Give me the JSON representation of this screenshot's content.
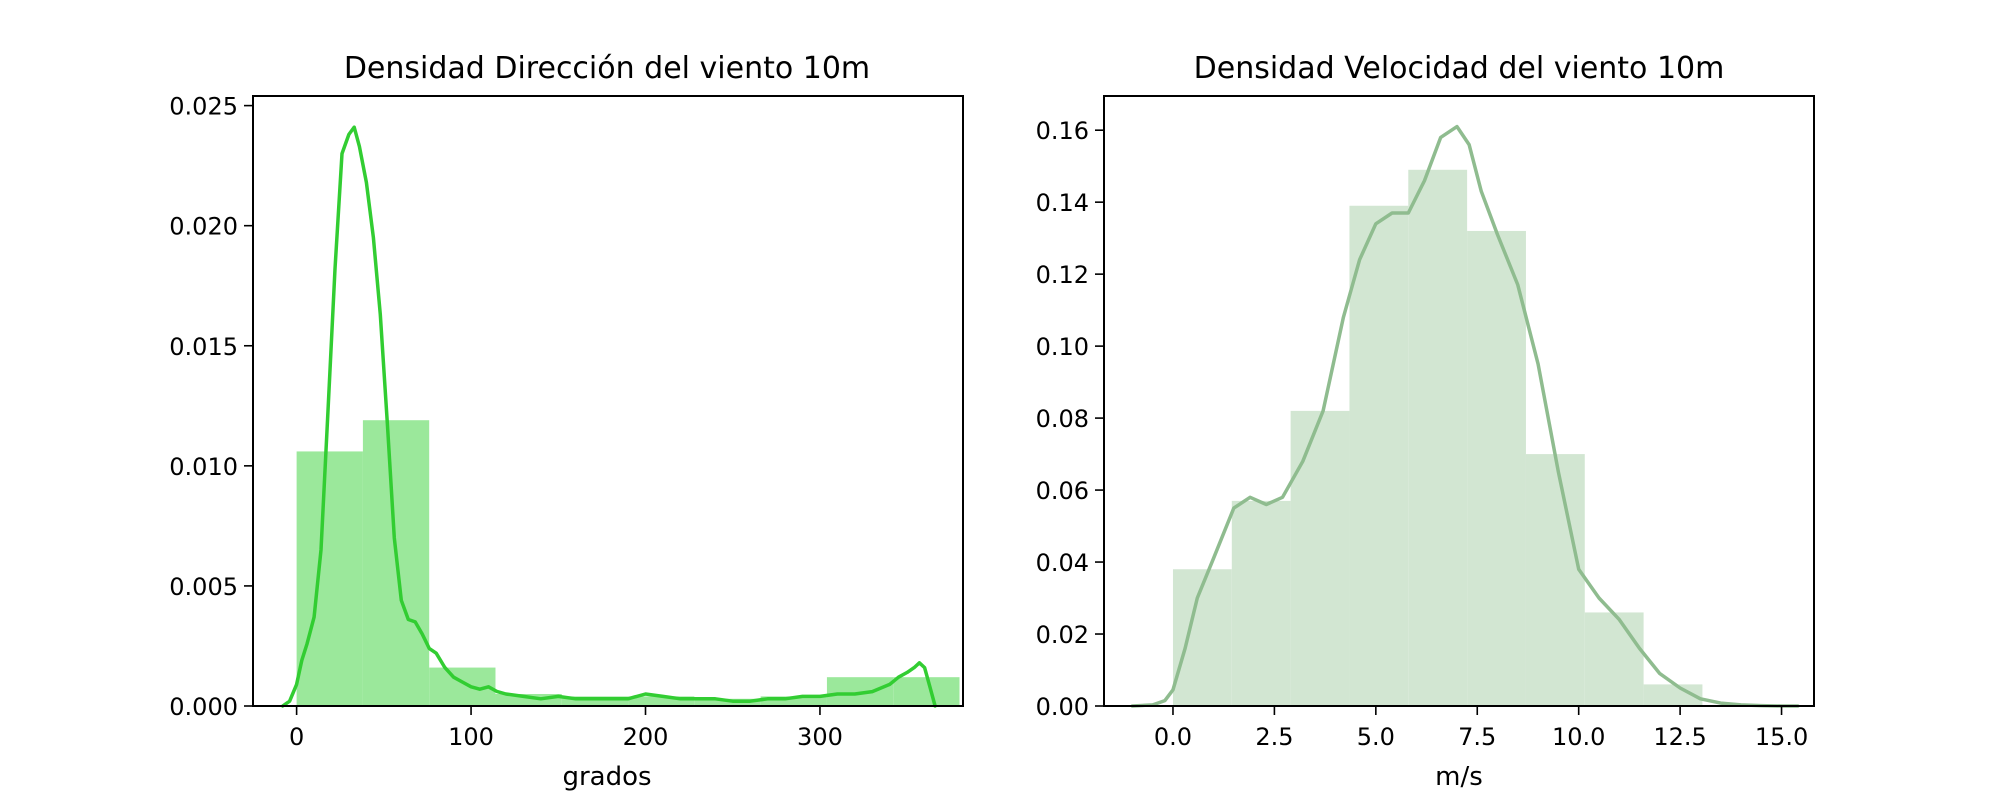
{
  "chart_data": [
    {
      "type": "histogram+kde",
      "title": "Densidad Dirección del viento 10m",
      "xlabel": "grados",
      "ylabel": "",
      "xlim": [
        -25,
        382
      ],
      "ylim": [
        0,
        0.0254
      ],
      "xticks": [
        0,
        100,
        200,
        300
      ],
      "xtick_labels": [
        "0",
        "100",
        "200",
        "300"
      ],
      "yticks": [
        0,
        0.005,
        0.01,
        0.015,
        0.02,
        0.025
      ],
      "ytick_labels": [
        "0.000",
        "0.005",
        "0.010",
        "0.015",
        "0.020",
        "0.025"
      ],
      "bar_color": "#9be89b",
      "line_color": "#32cd32",
      "bins": [
        {
          "x0": 0,
          "x1": 38,
          "value": 0.0106
        },
        {
          "x0": 38,
          "x1": 76,
          "value": 0.0119
        },
        {
          "x0": 76,
          "x1": 114,
          "value": 0.0016
        },
        {
          "x0": 114,
          "x1": 152,
          "value": 0.0005
        },
        {
          "x0": 152,
          "x1": 190,
          "value": 0.0004
        },
        {
          "x0": 190,
          "x1": 228,
          "value": 0.0004
        },
        {
          "x0": 228,
          "x1": 266,
          "value": 0.0003
        },
        {
          "x0": 266,
          "x1": 304,
          "value": 0.0004
        },
        {
          "x0": 304,
          "x1": 342,
          "value": 0.0012
        },
        {
          "x0": 342,
          "x1": 380,
          "value": 0.0012
        }
      ],
      "kde": {
        "x": [
          -8,
          -4,
          0,
          3,
          6,
          10,
          14,
          18,
          22,
          26,
          30,
          33,
          36,
          40,
          44,
          48,
          52,
          56,
          60,
          64,
          68,
          72,
          76,
          80,
          85,
          90,
          95,
          100,
          105,
          110,
          115,
          120,
          130,
          140,
          150,
          160,
          170,
          180,
          190,
          200,
          210,
          220,
          230,
          240,
          250,
          260,
          270,
          280,
          290,
          300,
          310,
          320,
          330,
          340,
          345,
          350,
          354,
          357,
          360,
          363,
          366
        ],
        "y": [
          0.0,
          0.0002,
          0.0009,
          0.0019,
          0.0026,
          0.0037,
          0.0065,
          0.0123,
          0.0182,
          0.023,
          0.0238,
          0.0241,
          0.0233,
          0.0218,
          0.0195,
          0.0163,
          0.0118,
          0.007,
          0.0044,
          0.0036,
          0.0035,
          0.003,
          0.0024,
          0.0022,
          0.0016,
          0.0012,
          0.001,
          0.0008,
          0.0007,
          0.0008,
          0.0006,
          0.0005,
          0.0004,
          0.0003,
          0.0004,
          0.0003,
          0.0003,
          0.0003,
          0.0003,
          0.0005,
          0.0004,
          0.0003,
          0.0003,
          0.0003,
          0.0002,
          0.0002,
          0.0003,
          0.0003,
          0.0004,
          0.0004,
          0.0005,
          0.0005,
          0.0006,
          0.0009,
          0.0012,
          0.0014,
          0.0016,
          0.0018,
          0.0016,
          0.0008,
          0.0
        ]
      }
    },
    {
      "type": "histogram+kde",
      "title": "Densidad Velocidad del viento 10m",
      "xlabel": "m/s",
      "ylabel": "",
      "xlim": [
        -1.7,
        15.8
      ],
      "ylim": [
        0,
        0.1695
      ],
      "xticks": [
        0,
        2.5,
        5,
        7.5,
        10,
        12.5,
        15
      ],
      "xtick_labels": [
        "0.0",
        "2.5",
        "5.0",
        "7.5",
        "10.0",
        "12.5",
        "15.0"
      ],
      "yticks": [
        0,
        0.02,
        0.04,
        0.06,
        0.08,
        0.1,
        0.12,
        0.14,
        0.16
      ],
      "ytick_labels": [
        "0.00",
        "0.02",
        "0.04",
        "0.06",
        "0.08",
        "0.10",
        "0.12",
        "0.14",
        "0.16"
      ],
      "bar_color": "#d2e6d2",
      "line_color": "#8fbc8f",
      "bins": [
        {
          "x0": 0,
          "x1": 1.45,
          "value": 0.038
        },
        {
          "x0": 1.45,
          "x1": 2.9,
          "value": 0.057
        },
        {
          "x0": 2.9,
          "x1": 4.35,
          "value": 0.082
        },
        {
          "x0": 4.35,
          "x1": 5.8,
          "value": 0.139
        },
        {
          "x0": 5.8,
          "x1": 7.25,
          "value": 0.149
        },
        {
          "x0": 7.25,
          "x1": 8.7,
          "value": 0.132
        },
        {
          "x0": 8.7,
          "x1": 10.15,
          "value": 0.07
        },
        {
          "x0": 10.15,
          "x1": 11.6,
          "value": 0.026
        },
        {
          "x0": 11.6,
          "x1": 13.05,
          "value": 0.006
        }
      ],
      "kde": {
        "x": [
          -1.0,
          -0.5,
          -0.2,
          0.0,
          0.3,
          0.6,
          1.0,
          1.5,
          1.9,
          2.3,
          2.7,
          3.2,
          3.7,
          4.2,
          4.6,
          5.0,
          5.4,
          5.8,
          6.2,
          6.6,
          7.0,
          7.3,
          7.6,
          8.0,
          8.5,
          9.0,
          9.5,
          10.0,
          10.5,
          11.0,
          11.5,
          12.0,
          12.5,
          13.0,
          13.5,
          14.0,
          14.5,
          15.0,
          15.4
        ],
        "y": [
          0.0,
          0.0003,
          0.0015,
          0.0045,
          0.016,
          0.03,
          0.041,
          0.055,
          0.058,
          0.056,
          0.058,
          0.068,
          0.082,
          0.108,
          0.124,
          0.134,
          0.137,
          0.137,
          0.146,
          0.158,
          0.161,
          0.156,
          0.143,
          0.131,
          0.117,
          0.095,
          0.065,
          0.038,
          0.03,
          0.024,
          0.016,
          0.009,
          0.005,
          0.002,
          0.0008,
          0.0003,
          0.0001,
          0.0,
          0.0
        ]
      }
    }
  ]
}
